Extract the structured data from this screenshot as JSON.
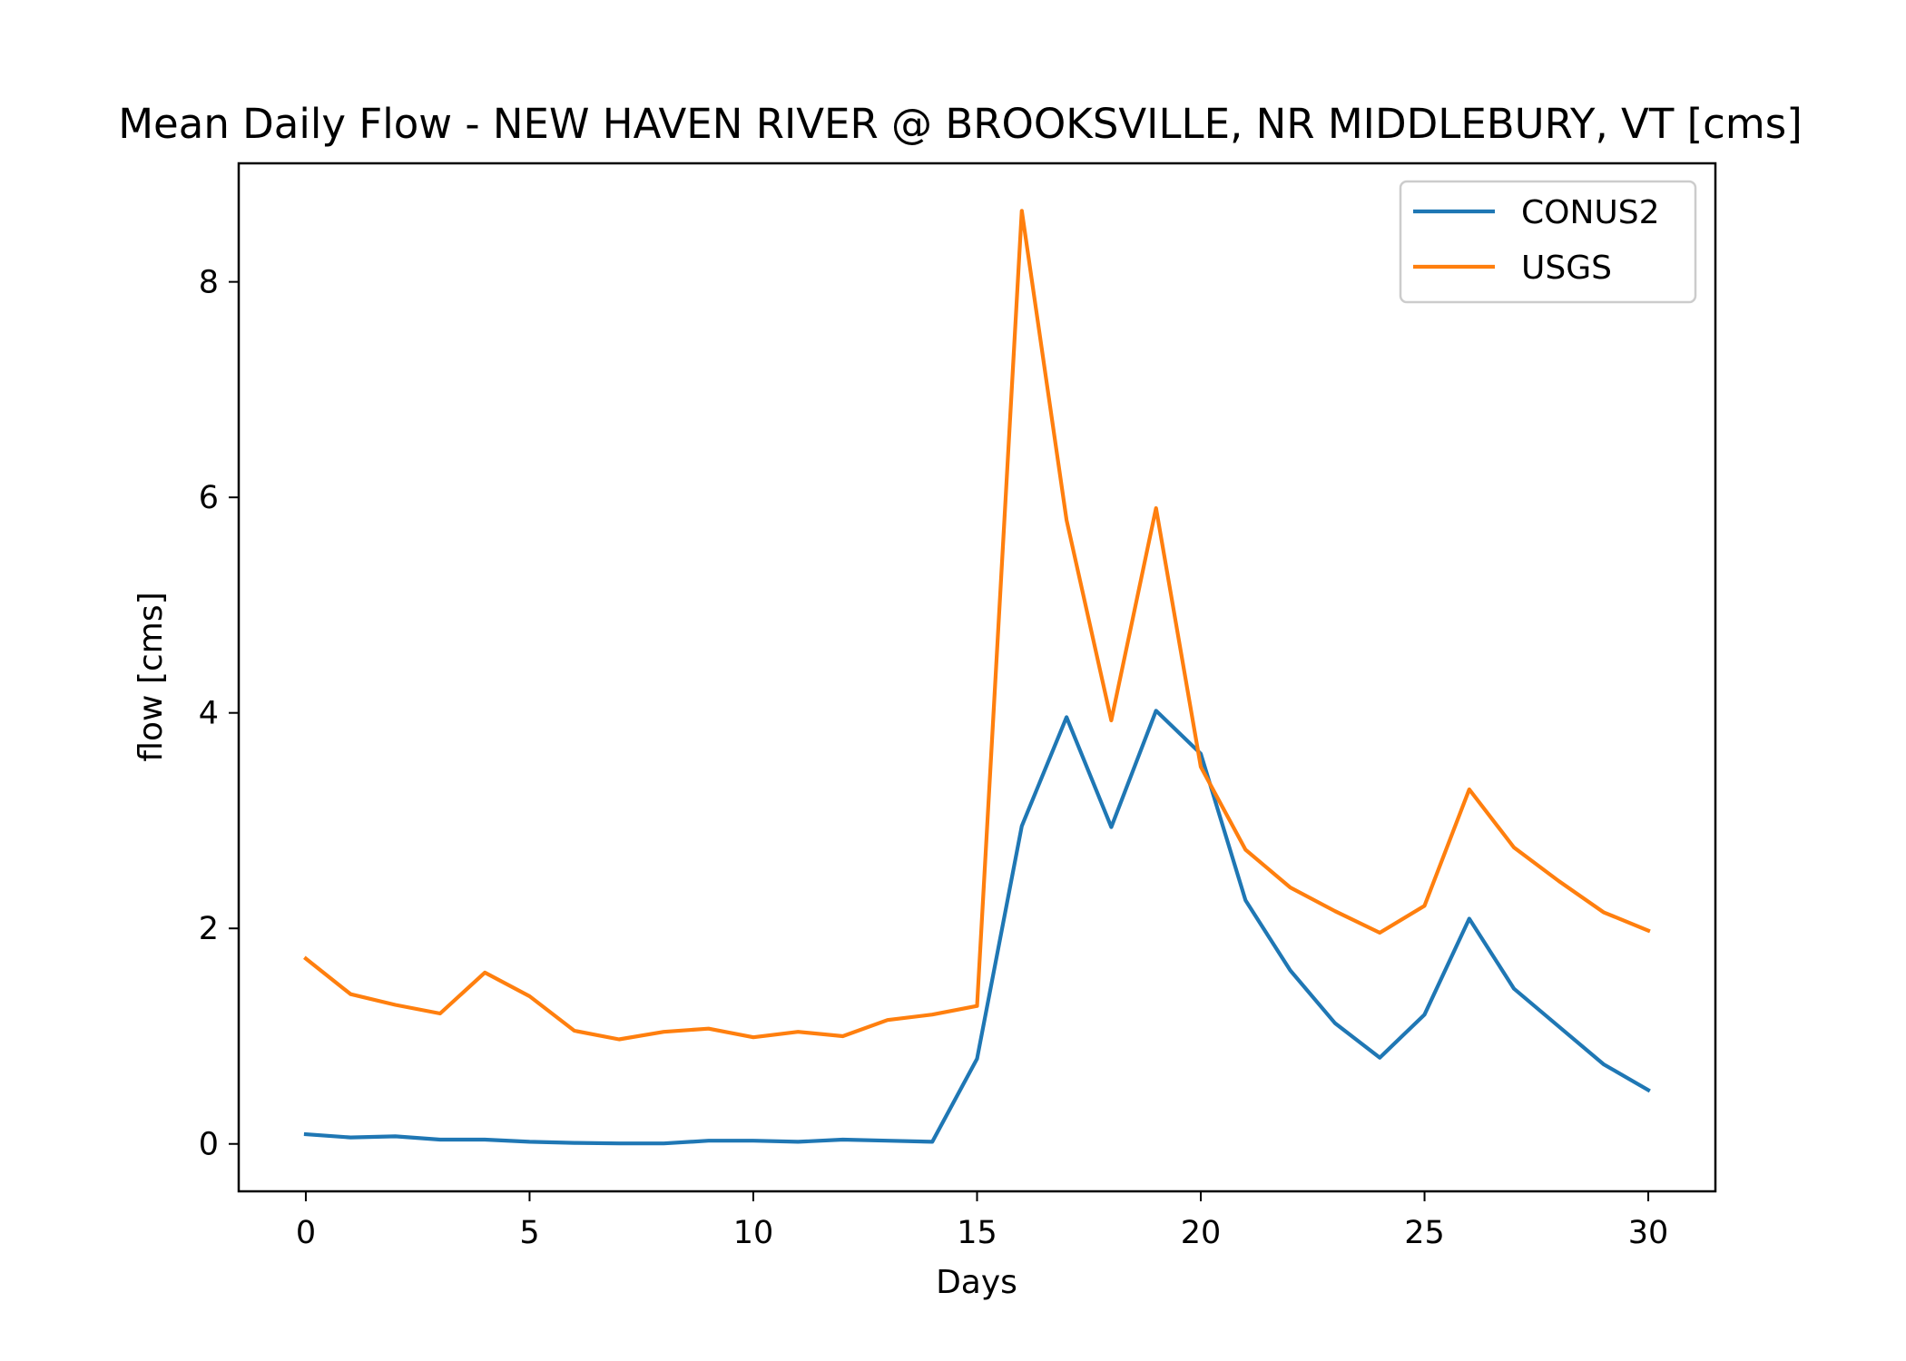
{
  "chart_data": {
    "type": "line",
    "title": "Mean Daily Flow - NEW HAVEN RIVER @ BROOKSVILLE, NR MIDDLEBURY, VT [cms]",
    "xlabel": "Days",
    "ylabel": "flow [cms]",
    "xlim": [
      -1.5,
      31.5
    ],
    "ylim": [
      -0.44,
      9.1
    ],
    "xticks": [
      0,
      5,
      10,
      15,
      20,
      25,
      30
    ],
    "yticks": [
      0,
      2,
      4,
      6,
      8
    ],
    "grid": false,
    "legend_position": "top-right",
    "x": [
      0,
      1,
      2,
      3,
      4,
      5,
      6,
      7,
      8,
      9,
      10,
      11,
      12,
      13,
      14,
      15,
      16,
      17,
      18,
      19,
      20,
      21,
      22,
      23,
      24,
      25,
      26,
      27,
      28,
      29,
      30
    ],
    "series": [
      {
        "name": "CONUS2",
        "color": "#1f77b4",
        "values": [
          0.09,
          0.06,
          0.07,
          0.04,
          0.04,
          0.02,
          0.01,
          0.005,
          0.005,
          0.03,
          0.03,
          0.02,
          0.04,
          0.03,
          0.02,
          0.79,
          2.95,
          3.96,
          2.94,
          4.02,
          3.62,
          2.26,
          1.61,
          1.12,
          0.8,
          1.2,
          2.09,
          1.44,
          1.09,
          0.74,
          0.5
        ]
      },
      {
        "name": "USGS",
        "color": "#ff7f0e",
        "values": [
          1.72,
          1.39,
          1.29,
          1.21,
          1.59,
          1.37,
          1.05,
          0.97,
          1.04,
          1.07,
          0.99,
          1.04,
          1.0,
          1.15,
          1.2,
          1.28,
          8.66,
          5.79,
          3.93,
          5.9,
          3.5,
          2.73,
          2.38,
          2.16,
          1.96,
          2.21,
          3.29,
          2.75,
          2.44,
          2.15,
          1.98
        ]
      }
    ]
  }
}
